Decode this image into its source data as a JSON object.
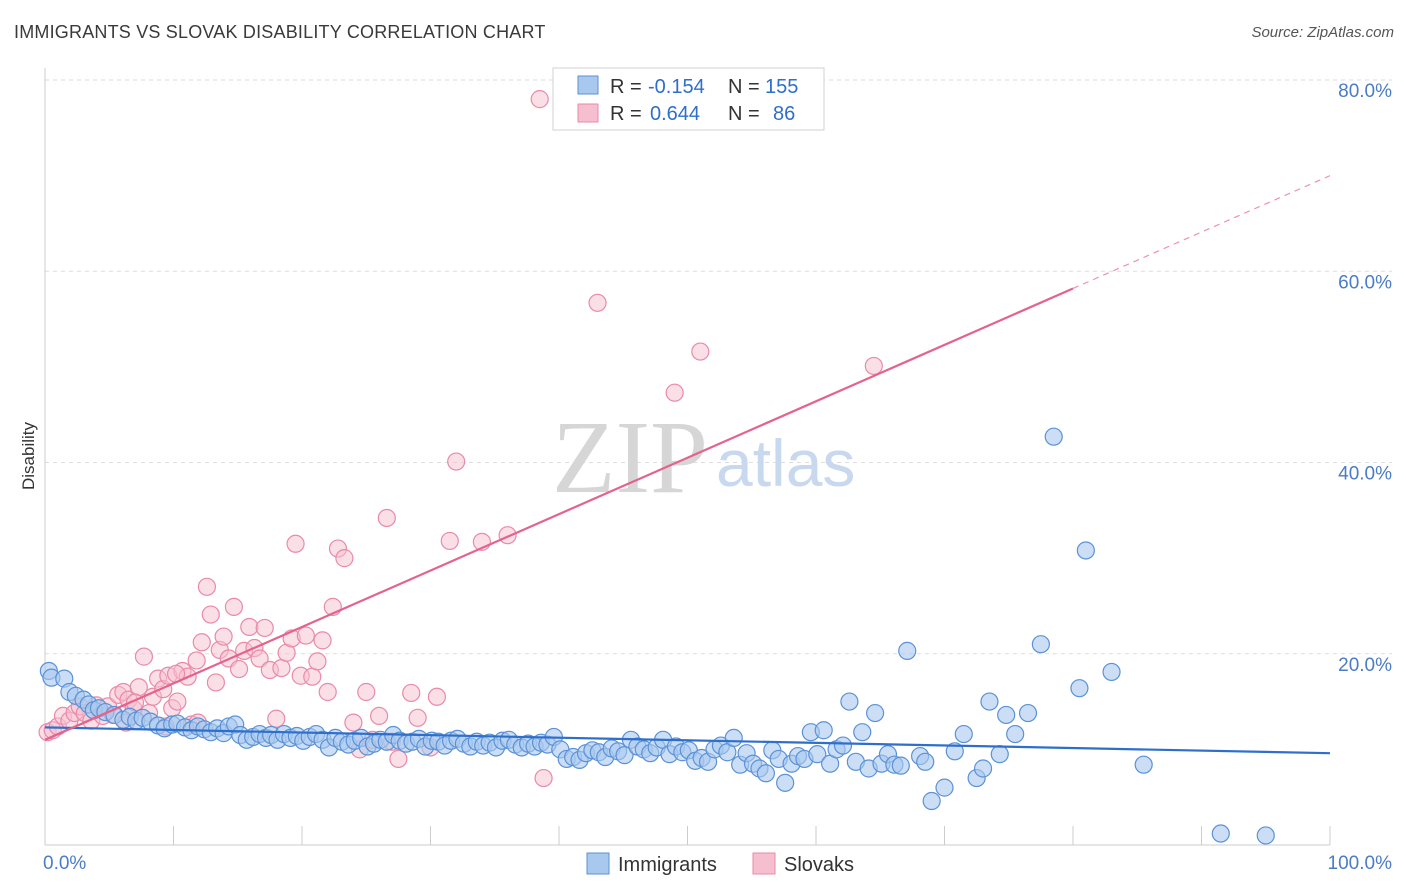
{
  "title": "IMMIGRANTS VS SLOVAK DISABILITY CORRELATION CHART",
  "source": "Source: ZipAtlas.com",
  "watermark": {
    "zip": "ZIP",
    "atlas": "atlas"
  },
  "colors": {
    "immigrants_fill": "#a9c8ee",
    "immigrants_stroke": "#5b92d6",
    "immigrants_line": "#2e6fcc",
    "slovaks_fill": "#f6bfd0",
    "slovaks_stroke": "#e98aa9",
    "slovaks_line": "#e4638d",
    "tick_text": "#4a7cc7",
    "grid": "#dddddd"
  },
  "stats_legend": {
    "immigrants": {
      "r_label": "R =",
      "r_value": "-0.154",
      "n_label": "N =",
      "n_value": "155"
    },
    "slovaks": {
      "r_label": "R =",
      "r_value": "0.644",
      "n_label": "N =",
      "n_value": "86"
    }
  },
  "chart_data": {
    "type": "scatter",
    "title": "IMMIGRANTS VS SLOVAK DISABILITY CORRELATION CHART",
    "xlabel": "",
    "ylabel": "Disability",
    "xlim": [
      0,
      100
    ],
    "ylim": [
      0,
      80
    ],
    "x_tick_labels": [
      "0.0%",
      "100.0%"
    ],
    "y_ticks": [
      20,
      40,
      60,
      80
    ],
    "y_tick_labels": [
      "20.0%",
      "40.0%",
      "60.0%",
      "80.0%"
    ],
    "grid": true,
    "legend_position": "bottom",
    "series": [
      {
        "name": "Immigrants",
        "r": -0.154,
        "n": 155,
        "trend": {
          "x": [
            0,
            100
          ],
          "y": [
            12.3,
            9.6
          ]
        },
        "points": [
          [
            0.3,
            18.2
          ],
          [
            0.5,
            17.5
          ],
          [
            1.5,
            17.4
          ],
          [
            1.9,
            16.0
          ],
          [
            2.4,
            15.6
          ],
          [
            3.0,
            15.2
          ],
          [
            3.4,
            14.7
          ],
          [
            3.8,
            14.1
          ],
          [
            4.2,
            14.3
          ],
          [
            4.7,
            13.9
          ],
          [
            5.4,
            13.6
          ],
          [
            6.1,
            13.1
          ],
          [
            6.6,
            13.4
          ],
          [
            7.1,
            13.0
          ],
          [
            7.6,
            13.3
          ],
          [
            8.2,
            12.9
          ],
          [
            8.8,
            12.5
          ],
          [
            9.3,
            12.2
          ],
          [
            9.9,
            12.6
          ],
          [
            10.3,
            12.7
          ],
          [
            10.9,
            12.3
          ],
          [
            11.4,
            12.0
          ],
          [
            11.9,
            12.4
          ],
          [
            12.4,
            12.1
          ],
          [
            12.9,
            11.8
          ],
          [
            13.4,
            12.2
          ],
          [
            13.9,
            11.7
          ],
          [
            14.3,
            12.4
          ],
          [
            14.8,
            12.6
          ],
          [
            15.2,
            11.5
          ],
          [
            15.7,
            11.0
          ],
          [
            16.2,
            11.3
          ],
          [
            16.7,
            11.6
          ],
          [
            17.2,
            11.2
          ],
          [
            17.6,
            11.5
          ],
          [
            18.1,
            11.0
          ],
          [
            18.6,
            11.6
          ],
          [
            19.1,
            11.2
          ],
          [
            19.6,
            11.4
          ],
          [
            20.1,
            10.9
          ],
          [
            20.6,
            11.3
          ],
          [
            21.1,
            11.6
          ],
          [
            21.6,
            11.0
          ],
          [
            22.1,
            10.2
          ],
          [
            22.6,
            11.2
          ],
          [
            23.1,
            10.8
          ],
          [
            23.6,
            10.5
          ],
          [
            24.1,
            10.9
          ],
          [
            24.6,
            11.2
          ],
          [
            25.1,
            10.3
          ],
          [
            25.6,
            10.6
          ],
          [
            26.1,
            11.0
          ],
          [
            26.6,
            10.8
          ],
          [
            27.1,
            11.5
          ],
          [
            27.6,
            10.9
          ],
          [
            28.1,
            10.6
          ],
          [
            28.6,
            10.8
          ],
          [
            29.1,
            11.1
          ],
          [
            29.6,
            10.3
          ],
          [
            30.1,
            10.9
          ],
          [
            30.6,
            10.8
          ],
          [
            31.1,
            10.4
          ],
          [
            31.6,
            10.9
          ],
          [
            32.1,
            11.1
          ],
          [
            32.6,
            10.6
          ],
          [
            33.1,
            10.3
          ],
          [
            33.6,
            10.8
          ],
          [
            34.1,
            10.4
          ],
          [
            34.6,
            10.7
          ],
          [
            35.1,
            10.2
          ],
          [
            35.6,
            10.9
          ],
          [
            36.1,
            11.0
          ],
          [
            36.6,
            10.5
          ],
          [
            37.1,
            10.2
          ],
          [
            37.6,
            10.6
          ],
          [
            38.1,
            10.3
          ],
          [
            38.6,
            10.7
          ],
          [
            39.1,
            10.5
          ],
          [
            39.6,
            11.3
          ],
          [
            40.1,
            10.0
          ],
          [
            40.6,
            9.0
          ],
          [
            41.1,
            9.2
          ],
          [
            41.6,
            8.9
          ],
          [
            42.1,
            9.6
          ],
          [
            42.6,
            9.9
          ],
          [
            43.1,
            9.7
          ],
          [
            43.6,
            9.2
          ],
          [
            44.1,
            10.1
          ],
          [
            44.6,
            9.8
          ],
          [
            45.1,
            9.4
          ],
          [
            45.6,
            11.0
          ],
          [
            46.1,
            10.3
          ],
          [
            46.6,
            10.0
          ],
          [
            47.1,
            9.6
          ],
          [
            47.6,
            10.2
          ],
          [
            48.1,
            11.0
          ],
          [
            48.6,
            9.5
          ],
          [
            49.1,
            10.3
          ],
          [
            49.6,
            9.7
          ],
          [
            50.1,
            9.9
          ],
          [
            50.6,
            8.8
          ],
          [
            51.1,
            9.1
          ],
          [
            51.6,
            8.7
          ],
          [
            52.1,
            10.0
          ],
          [
            52.6,
            10.4
          ],
          [
            53.1,
            9.7
          ],
          [
            53.6,
            11.2
          ],
          [
            54.1,
            8.4
          ],
          [
            54.6,
            9.6
          ],
          [
            55.1,
            8.5
          ],
          [
            55.6,
            8.0
          ],
          [
            56.1,
            7.5
          ],
          [
            56.6,
            9.9
          ],
          [
            57.1,
            9.0
          ],
          [
            57.6,
            6.5
          ],
          [
            58.1,
            8.5
          ],
          [
            58.6,
            9.3
          ],
          [
            59.1,
            9.0
          ],
          [
            59.6,
            11.8
          ],
          [
            60.1,
            9.5
          ],
          [
            60.6,
            12.0
          ],
          [
            61.1,
            8.5
          ],
          [
            61.6,
            10.0
          ],
          [
            62.1,
            10.4
          ],
          [
            62.6,
            15.0
          ],
          [
            63.1,
            8.7
          ],
          [
            63.6,
            11.8
          ],
          [
            64.1,
            8.0
          ],
          [
            64.6,
            13.8
          ],
          [
            65.1,
            8.5
          ],
          [
            65.6,
            9.5
          ],
          [
            66.1,
            8.4
          ],
          [
            66.6,
            8.3
          ],
          [
            67.1,
            20.3
          ],
          [
            68.1,
            9.3
          ],
          [
            68.5,
            8.7
          ],
          [
            69.0,
            4.6
          ],
          [
            70.0,
            6.0
          ],
          [
            70.8,
            9.8
          ],
          [
            71.5,
            11.6
          ],
          [
            72.5,
            7.0
          ],
          [
            73.0,
            8.0
          ],
          [
            73.5,
            15.0
          ],
          [
            74.3,
            9.5
          ],
          [
            74.8,
            13.6
          ],
          [
            75.5,
            11.6
          ],
          [
            76.5,
            13.8
          ],
          [
            77.5,
            21.0
          ],
          [
            78.5,
            42.7
          ],
          [
            80.5,
            16.4
          ],
          [
            81.0,
            30.8
          ],
          [
            83.0,
            18.1
          ],
          [
            85.5,
            8.4
          ],
          [
            91.5,
            1.2
          ],
          [
            95.0,
            1.0
          ]
        ]
      },
      {
        "name": "Slovaks",
        "r": 0.644,
        "n": 86,
        "trend": {
          "x": [
            0,
            100
          ],
          "y": [
            11.0,
            70.0
          ],
          "solid_until_x": 80
        },
        "points": [
          [
            0.2,
            11.8
          ],
          [
            0.6,
            12.0
          ],
          [
            1.0,
            12.4
          ],
          [
            1.4,
            13.5
          ],
          [
            1.9,
            13.0
          ],
          [
            2.3,
            13.8
          ],
          [
            2.7,
            14.5
          ],
          [
            3.1,
            13.8
          ],
          [
            3.6,
            13.0
          ],
          [
            4.0,
            14.6
          ],
          [
            4.5,
            13.5
          ],
          [
            4.9,
            14.5
          ],
          [
            5.3,
            13.6
          ],
          [
            5.7,
            15.7
          ],
          [
            6.1,
            16.0
          ],
          [
            6.5,
            15.2
          ],
          [
            6.9,
            14.2
          ],
          [
            7.3,
            16.5
          ],
          [
            7.7,
            19.7
          ],
          [
            8.1,
            13.8
          ],
          [
            8.4,
            15.5
          ],
          [
            8.8,
            17.4
          ],
          [
            9.2,
            16.3
          ],
          [
            9.6,
            17.7
          ],
          [
            9.9,
            14.3
          ],
          [
            10.3,
            15.0
          ],
          [
            10.7,
            18.2
          ],
          [
            11.1,
            17.6
          ],
          [
            11.4,
            12.6
          ],
          [
            11.8,
            19.3
          ],
          [
            12.2,
            21.2
          ],
          [
            12.6,
            27.0
          ],
          [
            12.9,
            24.1
          ],
          [
            13.3,
            17.0
          ],
          [
            13.6,
            20.4
          ],
          [
            13.9,
            21.8
          ],
          [
            14.3,
            19.5
          ],
          [
            14.7,
            24.9
          ],
          [
            15.1,
            18.4
          ],
          [
            15.5,
            20.3
          ],
          [
            15.9,
            22.8
          ],
          [
            16.3,
            20.6
          ],
          [
            16.7,
            19.5
          ],
          [
            17.1,
            22.7
          ],
          [
            17.5,
            18.3
          ],
          [
            18.0,
            13.2
          ],
          [
            18.4,
            18.5
          ],
          [
            18.8,
            20.1
          ],
          [
            19.2,
            21.6
          ],
          [
            19.5,
            31.5
          ],
          [
            19.9,
            17.7
          ],
          [
            20.3,
            21.9
          ],
          [
            20.8,
            17.6
          ],
          [
            21.2,
            19.2
          ],
          [
            21.6,
            21.4
          ],
          [
            22.0,
            16.0
          ],
          [
            22.4,
            24.9
          ],
          [
            22.8,
            31.0
          ],
          [
            23.3,
            30.0
          ],
          [
            24.0,
            12.8
          ],
          [
            24.5,
            10.0
          ],
          [
            25.0,
            16.0
          ],
          [
            25.5,
            11.0
          ],
          [
            26.0,
            13.5
          ],
          [
            26.6,
            34.2
          ],
          [
            27.0,
            10.8
          ],
          [
            27.5,
            9.0
          ],
          [
            28.5,
            15.9
          ],
          [
            29.0,
            13.3
          ],
          [
            30.0,
            10.2
          ],
          [
            30.5,
            15.5
          ],
          [
            31.5,
            31.8
          ],
          [
            32.0,
            40.1
          ],
          [
            34.0,
            31.7
          ],
          [
            36.0,
            32.4
          ],
          [
            38.5,
            78.0
          ],
          [
            38.8,
            7.0
          ],
          [
            43.0,
            56.7
          ],
          [
            49.0,
            47.3
          ],
          [
            51.0,
            51.6
          ],
          [
            64.5,
            50.1
          ],
          [
            6.3,
            12.8
          ],
          [
            7.0,
            14.9
          ],
          [
            9.4,
            12.4
          ],
          [
            11.9,
            12.8
          ],
          [
            10.2,
            17.9
          ]
        ]
      }
    ]
  },
  "legend": {
    "immigrants": "Immigrants",
    "slovaks": "Slovaks"
  }
}
